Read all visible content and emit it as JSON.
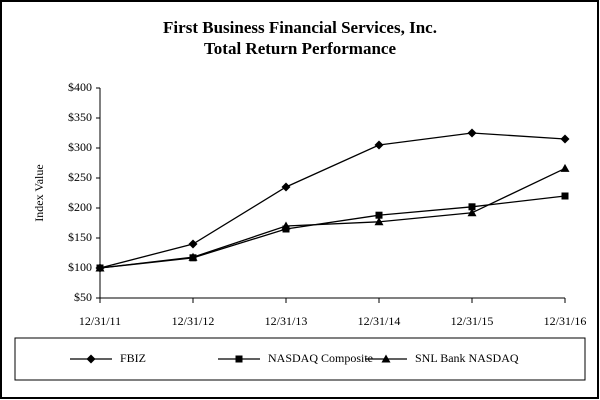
{
  "chart_data": {
    "type": "line",
    "title": "First Business Financial Services, Inc.",
    "subtitle": "Total Return Performance",
    "y_label": "Index Value",
    "categories": [
      "12/31/11",
      "12/31/12",
      "12/31/13",
      "12/31/14",
      "12/31/15",
      "12/31/16"
    ],
    "series": [
      {
        "name": "FBIZ",
        "color": "#000000",
        "marker": "diamond",
        "values": [
          100,
          140,
          235,
          305,
          325,
          315
        ]
      },
      {
        "name": "NASDAQ Composite",
        "color": "#000000",
        "marker": "square",
        "values": [
          100,
          117,
          165,
          188,
          202,
          220
        ]
      },
      {
        "name": "SNL Bank NASDAQ",
        "color": "#000000",
        "marker": "triangle",
        "values": [
          100,
          118,
          170,
          177,
          192,
          266
        ]
      }
    ],
    "ylim": [
      50,
      400
    ],
    "yticks": [
      {
        "value": 50,
        "label": "$50"
      },
      {
        "value": 100,
        "label": "$100"
      },
      {
        "value": 150,
        "label": "$150"
      },
      {
        "value": 200,
        "label": "$200"
      },
      {
        "value": 250,
        "label": "$250"
      },
      {
        "value": 300,
        "label": "$300"
      },
      {
        "value": 350,
        "label": "$350"
      },
      {
        "value": 400,
        "label": "$400"
      }
    ],
    "legend": "bottom"
  }
}
